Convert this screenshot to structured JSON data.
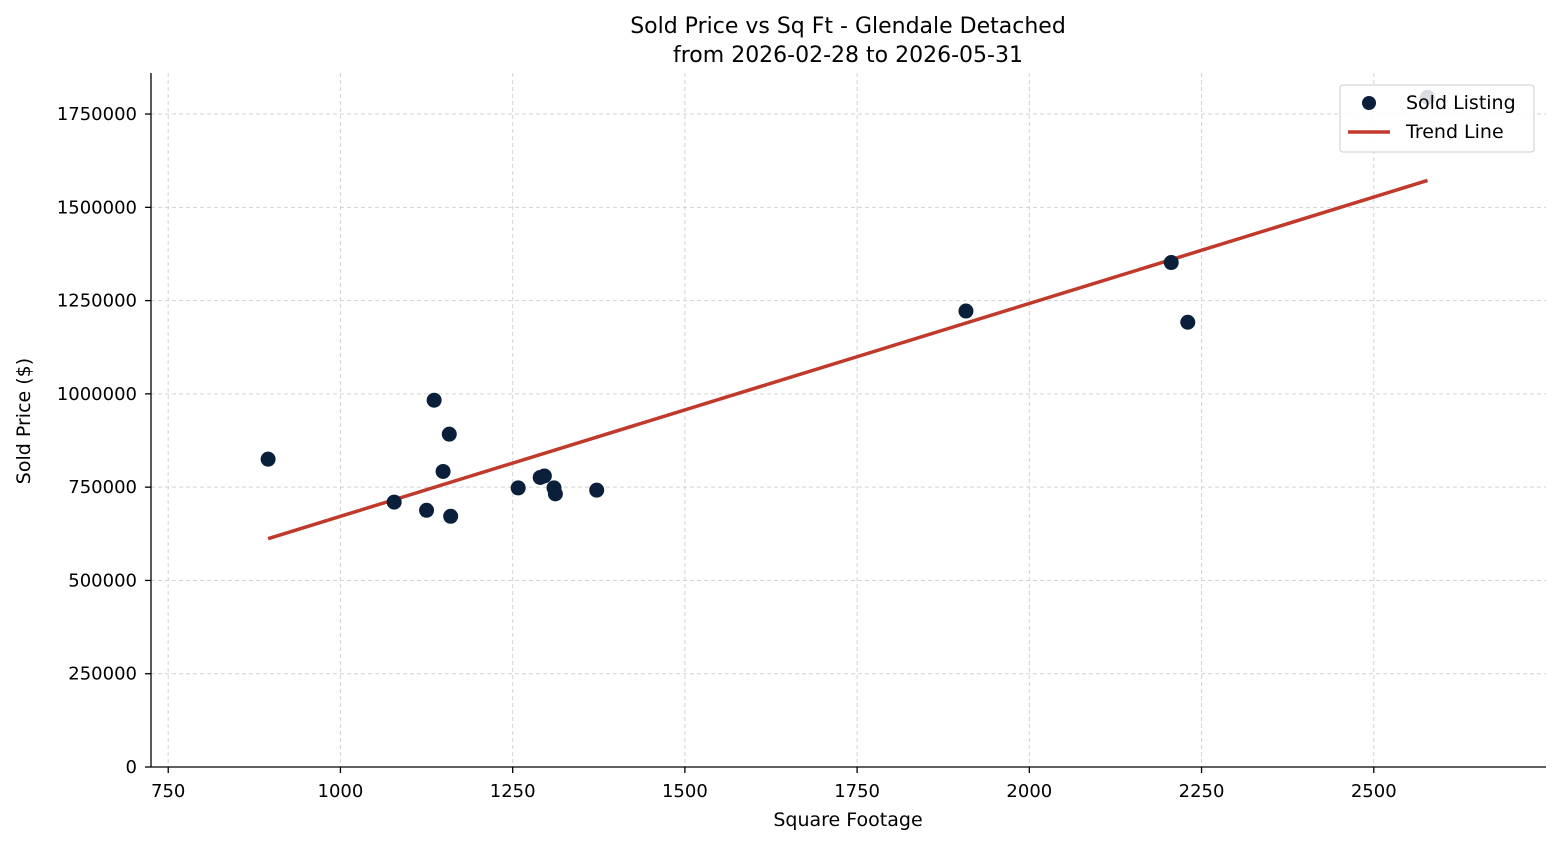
{
  "chart_data": {
    "type": "scatter",
    "title": "Sold Price vs Sq Ft - Glendale Detached",
    "subtitle": "from 2026-02-28 to 2026-05-31",
    "xlabel": "Square Footage",
    "ylabel": "Sold Price ($)",
    "xlim": [
      725,
      2750
    ],
    "ylim": [
      0,
      1860000
    ],
    "x_ticks": [
      750,
      1000,
      1250,
      1500,
      1750,
      2000,
      2250,
      2500
    ],
    "y_ticks": [
      0,
      250000,
      500000,
      750000,
      1000000,
      1250000,
      1500000,
      1750000
    ],
    "grid": true,
    "legend_position": "top-right",
    "series": [
      {
        "name": "Sold Listing",
        "kind": "scatter",
        "color": "#0a1f3a",
        "points": [
          {
            "x": 895,
            "y": 825000
          },
          {
            "x": 1078,
            "y": 710000
          },
          {
            "x": 1125,
            "y": 688000
          },
          {
            "x": 1136,
            "y": 983000
          },
          {
            "x": 1149,
            "y": 792000
          },
          {
            "x": 1158,
            "y": 892000
          },
          {
            "x": 1160,
            "y": 672000
          },
          {
            "x": 1258,
            "y": 748000
          },
          {
            "x": 1290,
            "y": 776000
          },
          {
            "x": 1296,
            "y": 780000
          },
          {
            "x": 1310,
            "y": 748000
          },
          {
            "x": 1312,
            "y": 732000
          },
          {
            "x": 1372,
            "y": 742000
          },
          {
            "x": 1908,
            "y": 1222000
          },
          {
            "x": 2206,
            "y": 1352000
          },
          {
            "x": 2230,
            "y": 1192000
          },
          {
            "x": 2578,
            "y": 1795000
          }
        ]
      },
      {
        "name": "Trend Line",
        "kind": "line",
        "color": "#c0392b",
        "points": [
          {
            "x": 895,
            "y": 612000
          },
          {
            "x": 2578,
            "y": 1572000
          }
        ]
      }
    ]
  }
}
